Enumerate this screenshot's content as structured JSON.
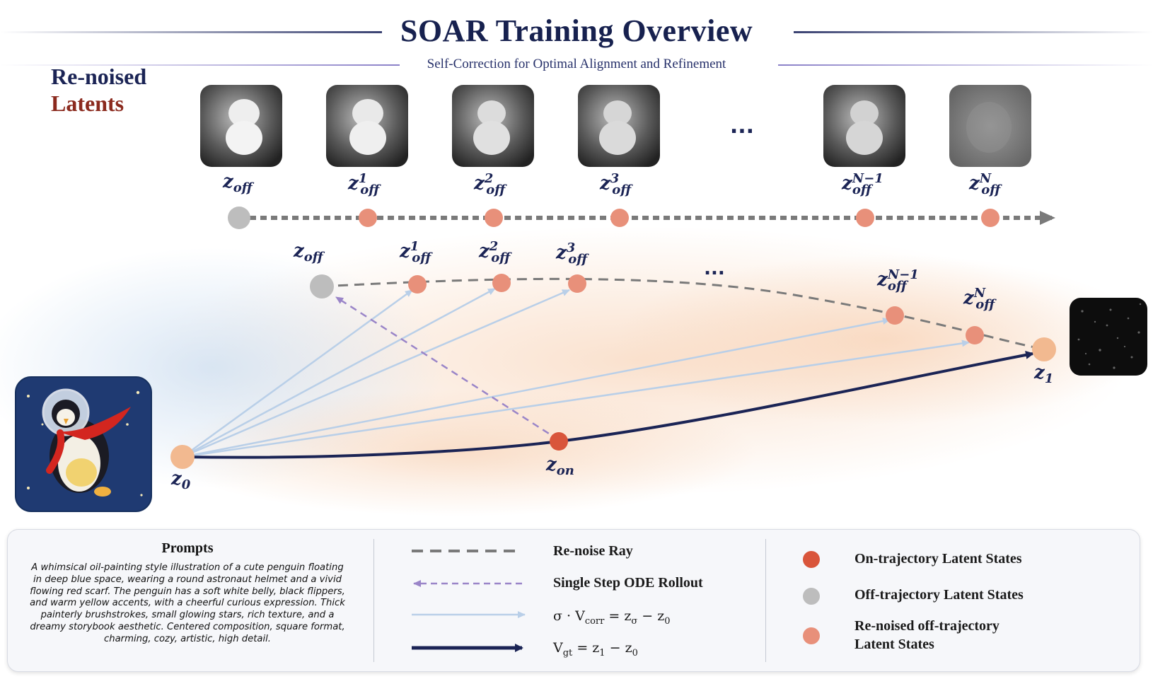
{
  "title": "SOAR Training Overview",
  "subtitle": "Self-Correction for Optimal Alignment and Refinement",
  "heading": {
    "line1": "Re-noised",
    "line2": "Latents"
  },
  "top_row": {
    "labels": [
      {
        "base": "z",
        "sub": "off",
        "sup": ""
      },
      {
        "base": "z",
        "sub": "off",
        "sup": "1"
      },
      {
        "base": "z",
        "sub": "off",
        "sup": "2"
      },
      {
        "base": "z",
        "sub": "off",
        "sup": "3"
      },
      {
        "base": "z",
        "sub": "off",
        "sup": "N−1"
      },
      {
        "base": "z",
        "sub": "off",
        "sup": "N"
      }
    ],
    "ellipsis": "..."
  },
  "trajectory": {
    "arc_labels": [
      {
        "base": "z",
        "sub": "off",
        "sup": ""
      },
      {
        "base": "z",
        "sub": "off",
        "sup": "1"
      },
      {
        "base": "z",
        "sub": "off",
        "sup": "2"
      },
      {
        "base": "z",
        "sub": "off",
        "sup": "3"
      },
      {
        "base": "z",
        "sub": "off",
        "sup": "N−1"
      },
      {
        "base": "z",
        "sub": "off",
        "sup": "N"
      }
    ],
    "ellipsis": "...",
    "z0": {
      "base": "z",
      "sub": "0"
    },
    "zon": {
      "base": "z",
      "sub": "on"
    },
    "z1": {
      "base": "z",
      "sub": "1"
    }
  },
  "legend": {
    "prompts_title": "Prompts",
    "prompt_text": "A whimsical oil-painting style illustration of a cute penguin floating in deep blue space, wearing a round astronaut helmet and a vivid flowing red scarf. The penguin has a soft white belly, black flippers, and warm yellow accents, with a cheerful curious expression. Thick painterly brushstrokes, small glowing stars, rich texture, and a dreamy storybook aesthetic. Centered composition, square format, charming, cozy, artistic, high detail.",
    "lines": {
      "renoise": "Re-noise Ray",
      "single_step": "Single Step ODE Rollout",
      "sigma_corr": "σ · V_corr = z_σ − z_0",
      "vgt": "V_gt = z_1 − z_0"
    },
    "states": {
      "on": "On-trajectory Latent States",
      "off": "Off-trajectory Latent States",
      "renoised_1": "Re-noised off-trajectory",
      "renoised_2": "Latent States"
    }
  },
  "colors": {
    "navy": "#1b2455",
    "on_state": "#d9553b",
    "off_state": "#bdbdbd",
    "renoised_state": "#e8907a",
    "endpoint": "#f2b990",
    "light_arrow": "#b9cfe8",
    "dashed_purple": "#9a85c8",
    "dashed_gray": "#7a7a7a"
  }
}
